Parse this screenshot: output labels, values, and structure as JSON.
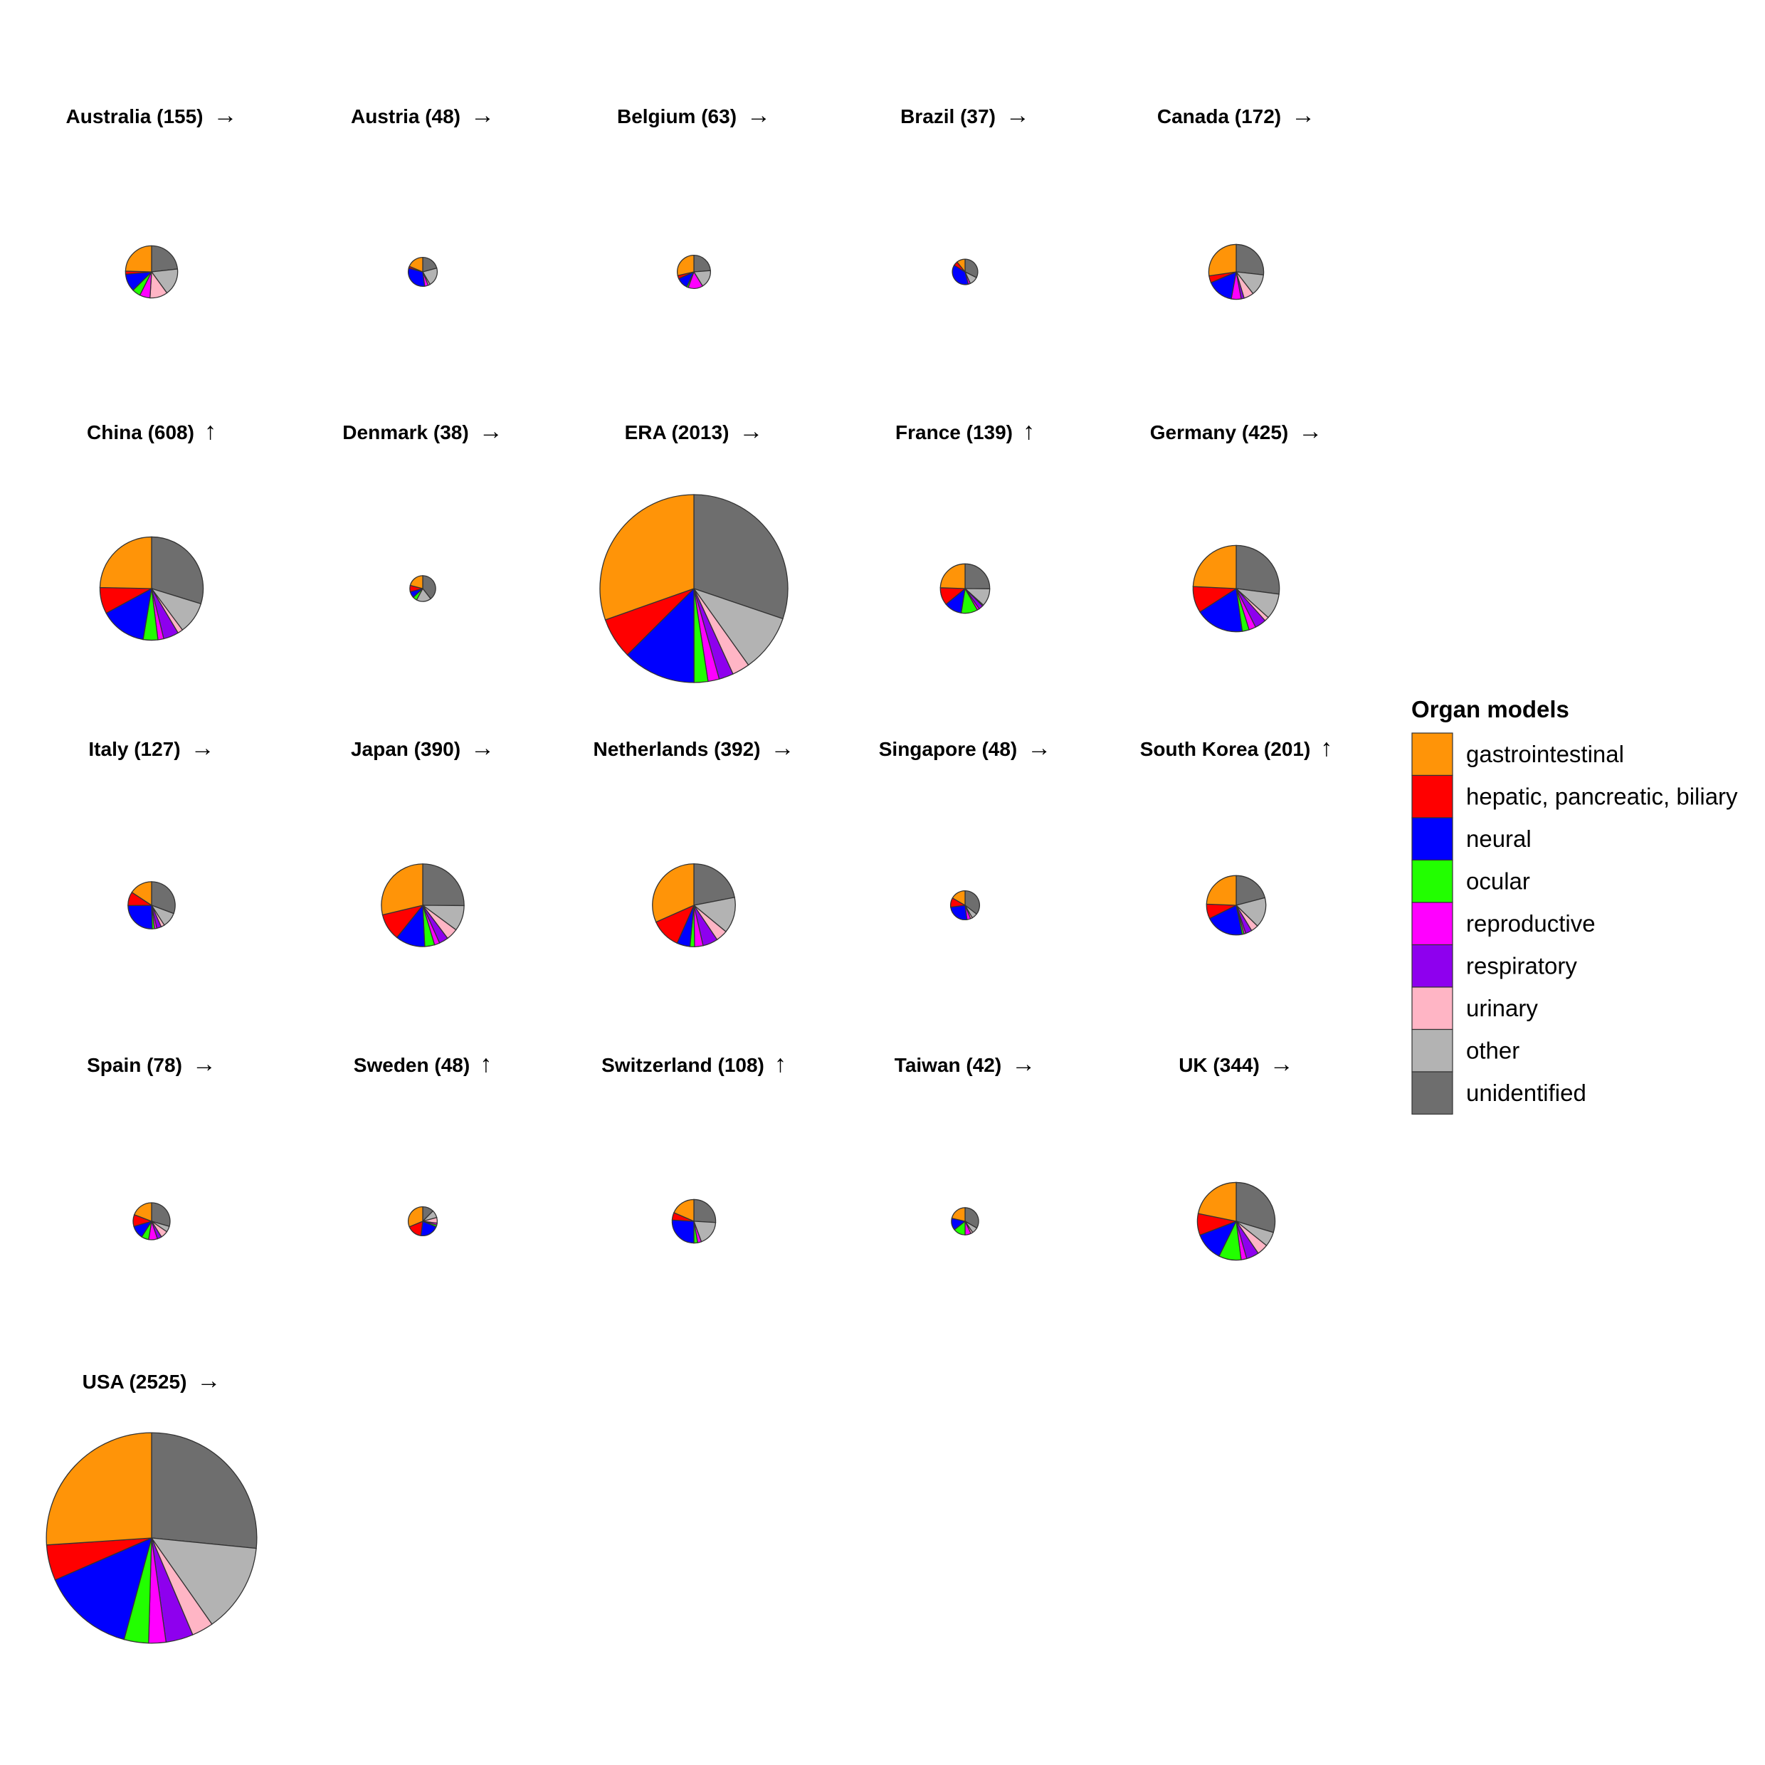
{
  "chart_data": {
    "type": "pie",
    "title": "",
    "legend": {
      "title": "Organ models",
      "placement": "right",
      "entries": [
        {
          "name": "gastrointestinal",
          "color": "#FF9408"
        },
        {
          "name": "hepatic, pancreatic, biliary",
          "color": "#FF0000"
        },
        {
          "name": "neural",
          "color": "#0000FF"
        },
        {
          "name": "ocular",
          "color": "#22FF00"
        },
        {
          "name": "reproductive",
          "color": "#FF00FF"
        },
        {
          "name": "respiratory",
          "color": "#8E00EE"
        },
        {
          "name": "urinary",
          "color": "#FFB5C5"
        },
        {
          "name": "other",
          "color": "#B3B3B3"
        },
        {
          "name": "unidentified",
          "color": "#6E6E6E"
        }
      ]
    },
    "categories": [
      "unidentified",
      "other",
      "urinary",
      "respiratory",
      "reproductive",
      "ocular",
      "neural",
      "hepatic, pancreatic, biliary",
      "gastrointestinal"
    ],
    "panels": [
      {
        "label": "Australia (155)",
        "trend": "→",
        "total": 155,
        "values": [
          36,
          26,
          17,
          0,
          10,
          8,
          17,
          3,
          38
        ]
      },
      {
        "label": "Austria (48)",
        "trend": "→",
        "total": 48,
        "values": [
          10,
          10,
          1,
          0,
          2,
          0,
          15,
          1,
          9
        ]
      },
      {
        "label": "Belgium (63)",
        "trend": "→",
        "total": 63,
        "values": [
          15,
          11,
          0,
          0,
          9,
          1,
          7,
          2,
          18
        ]
      },
      {
        "label": "Brazil (37)",
        "trend": "→",
        "total": 37,
        "values": [
          12,
          4,
          0,
          0,
          1,
          0,
          14,
          2,
          4
        ]
      },
      {
        "label": "Canada (172)",
        "trend": "→",
        "total": 172,
        "values": [
          46,
          22,
          10,
          3,
          10,
          0,
          27,
          7,
          47
        ]
      },
      {
        "label": "China (608)",
        "trend": "↑",
        "total": 608,
        "values": [
          181,
          61,
          10,
          29,
          11,
          28,
          88,
          50,
          150
        ]
      },
      {
        "label": "Denmark (38)",
        "trend": "→",
        "total": 38,
        "values": [
          15,
          7,
          0,
          0,
          0,
          2,
          3,
          3,
          8
        ]
      },
      {
        "label": "ERA (2013)",
        "trend": "→",
        "total": 2013,
        "values": [
          608,
          200,
          61,
          50,
          39,
          48,
          253,
          142,
          612
        ]
      },
      {
        "label": "France (139)",
        "trend": "↑",
        "total": 139,
        "values": [
          35,
          16,
          1,
          4,
          2,
          15,
          16,
          16,
          34
        ]
      },
      {
        "label": "Germany (425)",
        "trend": "→",
        "total": 425,
        "values": [
          115,
          41,
          7,
          18,
          11,
          11,
          77,
          42,
          103
        ]
      },
      {
        "label": "Italy (127)",
        "trend": "→",
        "total": 127,
        "values": [
          39,
          13,
          3,
          4,
          2,
          2,
          32,
          12,
          20
        ]
      },
      {
        "label": "Japan (390)",
        "trend": "→",
        "total": 390,
        "values": [
          98,
          39,
          18,
          14,
          8,
          15,
          45,
          41,
          112
        ]
      },
      {
        "label": "Netherlands (392)",
        "trend": "→",
        "total": 392,
        "values": [
          86,
          55,
          18,
          23,
          13,
          7,
          20,
          46,
          124
        ]
      },
      {
        "label": "Singapore (48)",
        "trend": "→",
        "total": 48,
        "values": [
          17,
          3,
          1,
          0,
          2,
          0,
          12,
          5,
          8
        ]
      },
      {
        "label": "South Korea (201)",
        "trend": "↑",
        "total": 201,
        "values": [
          42,
          33,
          8,
          7,
          2,
          2,
          42,
          16,
          49
        ]
      },
      {
        "label": "Spain (78)",
        "trend": "→",
        "total": 78,
        "values": [
          23,
          4,
          5,
          3,
          6,
          5,
          9,
          8,
          15
        ]
      },
      {
        "label": "Sweden (48)",
        "trend": "↑",
        "total": 48,
        "values": [
          6,
          4,
          3,
          0,
          1,
          1,
          10,
          8,
          15
        ]
      },
      {
        "label": "Switzerland (108)",
        "trend": "↑",
        "total": 108,
        "values": [
          28,
          20,
          0,
          0,
          3,
          3,
          28,
          6,
          20
        ]
      },
      {
        "label": "Taiwan (42)",
        "trend": "→",
        "total": 42,
        "values": [
          14,
          3,
          1,
          0,
          3,
          6,
          6,
          0,
          9
        ]
      },
      {
        "label": "UK (344)",
        "trend": "→",
        "total": 344,
        "values": [
          102,
          21,
          16,
          18,
          8,
          32,
          41,
          31,
          75
        ]
      },
      {
        "label": "USA (2525)",
        "trend": "→",
        "total": 2525,
        "values": [
          671,
          346,
          84,
          106,
          67,
          95,
          360,
          138,
          658
        ]
      }
    ]
  }
}
